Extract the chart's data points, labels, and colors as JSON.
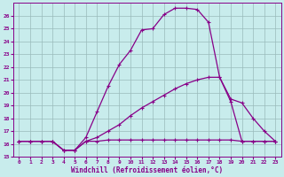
{
  "xlabel": "Windchill (Refroidissement éolien,°C)",
  "xlim_min": -0.5,
  "xlim_max": 23.5,
  "ylim_min": 15,
  "ylim_max": 27,
  "yticks": [
    15,
    16,
    17,
    18,
    19,
    20,
    21,
    22,
    23,
    24,
    25,
    26
  ],
  "xticks": [
    0,
    1,
    2,
    3,
    4,
    5,
    6,
    7,
    8,
    9,
    10,
    11,
    12,
    13,
    14,
    15,
    16,
    17,
    18,
    19,
    20,
    21,
    22,
    23
  ],
  "background_color": "#c8ecec",
  "line_color": "#880088",
  "grid_color": "#99bbbb",
  "line1_y": [
    16.2,
    16.2,
    16.2,
    16.2,
    15.5,
    15.5,
    16.5,
    18.5,
    20.5,
    22.2,
    23.3,
    24.9,
    25.0,
    26.1,
    26.6,
    26.6,
    26.5,
    25.5,
    21.2,
    19.3,
    16.2,
    16.2,
    16.2,
    16.2
  ],
  "line2_y": [
    16.2,
    16.2,
    16.2,
    16.2,
    15.5,
    15.5,
    16.2,
    16.5,
    17.0,
    17.5,
    18.2,
    18.8,
    19.3,
    19.8,
    20.3,
    20.7,
    21.0,
    21.2,
    21.2,
    19.5,
    19.2,
    18.0,
    17.0,
    16.2
  ],
  "line3_y": [
    16.2,
    16.2,
    16.2,
    16.2,
    15.5,
    15.5,
    16.2,
    16.2,
    16.3,
    16.3,
    16.3,
    16.3,
    16.3,
    16.3,
    16.3,
    16.3,
    16.3,
    16.3,
    16.3,
    16.3,
    16.2,
    16.2,
    16.2,
    16.2
  ]
}
